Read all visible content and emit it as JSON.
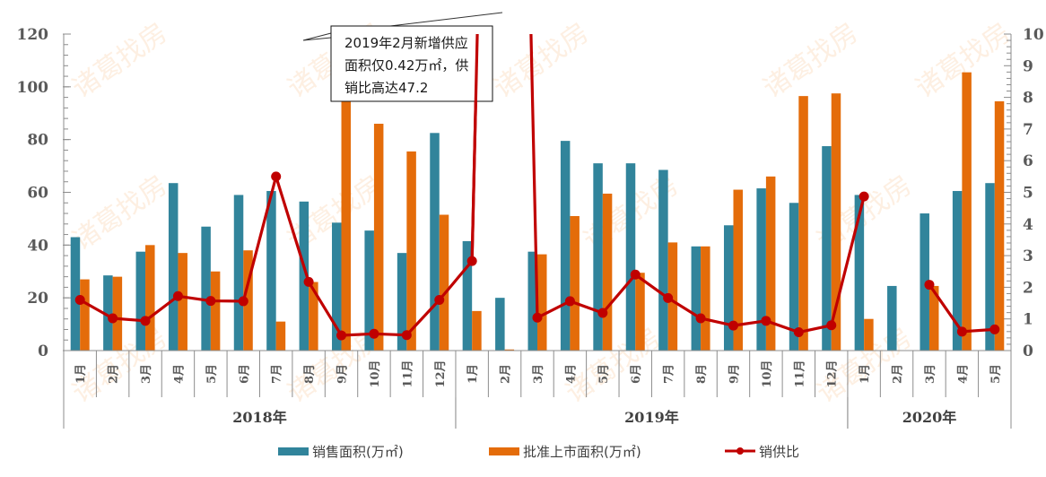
{
  "chart_data": {
    "type": "bar+line",
    "title": "",
    "watermark": "诸葛找房",
    "categories": [
      "2018-1月",
      "2018-2月",
      "2018-3月",
      "2018-4月",
      "2018-5月",
      "2018-6月",
      "2018-7月",
      "2018-8月",
      "2018-9月",
      "2018-10月",
      "2018-11月",
      "2018-12月",
      "2019-1月",
      "2019-2月",
      "2019-3月",
      "2019-4月",
      "2019-5月",
      "2019-6月",
      "2019-7月",
      "2019-8月",
      "2019-9月",
      "2019-10月",
      "2019-11月",
      "2019-12月",
      "2020-1月",
      "2020-2月",
      "2020-3月",
      "2020-4月",
      "2020-5月"
    ],
    "month_labels": [
      "1月",
      "2月",
      "3月",
      "4月",
      "5月",
      "6月",
      "7月",
      "8月",
      "9月",
      "10月",
      "11月",
      "12月",
      "1月",
      "2月",
      "3月",
      "4月",
      "5月",
      "6月",
      "7月",
      "8月",
      "9月",
      "10月",
      "11月",
      "12月",
      "1月",
      "2月",
      "3月",
      "4月",
      "5月"
    ],
    "year_groups": [
      {
        "label": "2018年",
        "start": 0,
        "count": 12
      },
      {
        "label": "2019年",
        "start": 12,
        "count": 12
      },
      {
        "label": "2020年",
        "start": 24,
        "count": 5
      }
    ],
    "series": [
      {
        "name": "销售面积(万㎡)",
        "type": "bar",
        "axis": "left",
        "color": "#31849B",
        "values": [
          43,
          28.5,
          37.5,
          63.5,
          47,
          59,
          60.5,
          56.5,
          48.5,
          45.5,
          37,
          82.5,
          41.5,
          20,
          37.5,
          79.5,
          71,
          71,
          68.5,
          39.5,
          47.5,
          61.5,
          56,
          77.5,
          59,
          24.5,
          52,
          60.5,
          63.5
        ]
      },
      {
        "name": "批准上市面积(万㎡)",
        "type": "bar",
        "axis": "left",
        "color": "#E46C0A",
        "values": [
          27,
          28,
          40,
          37,
          30,
          38,
          11,
          26,
          100.5,
          86,
          75.5,
          51.5,
          15,
          0.42,
          36.5,
          51,
          59.5,
          29.5,
          41,
          39.5,
          61,
          66,
          96.5,
          97.5,
          12,
          0,
          24.5,
          105.5,
          94.5
        ]
      },
      {
        "name": "销供比",
        "type": "line",
        "axis": "right",
        "color": "#C00000",
        "values": [
          1.6,
          1.02,
          0.94,
          1.72,
          1.57,
          1.56,
          5.5,
          2.17,
          0.48,
          0.53,
          0.49,
          1.6,
          2.83,
          47.2,
          1.04,
          1.56,
          1.19,
          2.4,
          1.66,
          1.02,
          0.79,
          0.94,
          0.58,
          0.8,
          4.87,
          null,
          2.08,
          0.6,
          0.67
        ]
      }
    ],
    "left_axis": {
      "min": 0,
      "max": 120,
      "step": 20,
      "ticks": [
        "0",
        "20",
        "40",
        "60",
        "80",
        "100",
        "120"
      ]
    },
    "right_axis": {
      "min": 0,
      "max": 10,
      "step": 1,
      "ticks": [
        "0",
        "1",
        "2",
        "3",
        "4",
        "5",
        "6",
        "7",
        "8",
        "9",
        "10"
      ]
    },
    "annotation": {
      "lines": [
        "2019年2月新增供应",
        "面积仅0.42万㎡，供",
        "销比高达47.2"
      ]
    },
    "legend": {
      "position": "bottom",
      "items": [
        {
          "label": "销售面积(万㎡)",
          "color": "#31849B",
          "shape": "rect"
        },
        {
          "label": "批准上市面积(万㎡)",
          "color": "#E46C0A",
          "shape": "rect"
        },
        {
          "label": "销供比",
          "color": "#C00000",
          "shape": "line-marker"
        }
      ]
    },
    "grid": false
  }
}
